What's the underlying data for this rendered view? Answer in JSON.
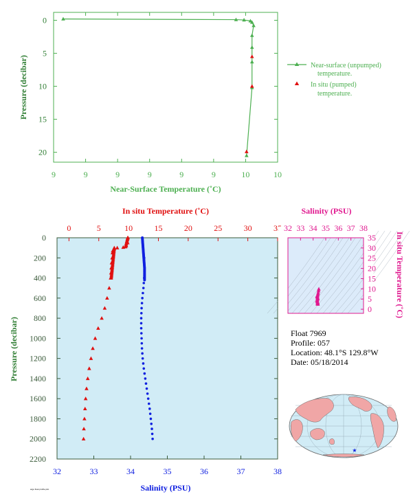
{
  "colors": {
    "green": "#4caf50",
    "axis_green": "#2e7d32",
    "red": "#e01010",
    "blue": "#1020e0",
    "magenta": "#e0188f",
    "panel_fill": "#d1ecf6",
    "ts_fill": "#dcebfa",
    "axis_dark": "#3a5a3a"
  },
  "info": {
    "float": "Float  7969",
    "profile": "Profile:  057",
    "location": "Location:  48.1°S  129.8°W",
    "date": "Date:  05/18/2014"
  },
  "chart_data": [
    {
      "type": "line",
      "xlabel": "Near-Surface Temperature (˚C)",
      "ylabel": "Pressure (decibar)",
      "x_tick_labels": [
        "9",
        "9",
        "9",
        "9",
        "9",
        "9",
        "10",
        "10"
      ],
      "y_ticks": [
        0,
        5,
        10,
        15,
        20
      ],
      "xlim": [
        9.3,
        10.0
      ],
      "ylim": [
        21.5,
        -1.2
      ],
      "series": [
        {
          "name": "Near-surface (unpumped) temperature.",
          "x": [
            9.33,
            9.87,
            9.895,
            9.915,
            9.92,
            9.925,
            9.92,
            9.92,
            9.92,
            9.92,
            9.903
          ],
          "y": [
            -0.2,
            -0.1,
            -0.05,
            0.1,
            0.3,
            0.8,
            2.3,
            4.1,
            6.3,
            10.2,
            20.5
          ]
        },
        {
          "name": "In situ (pumped) temperature.",
          "x": [
            9.903,
            9.92,
            9.92
          ],
          "y": [
            19.9,
            10.0,
            5.5
          ]
        }
      ],
      "legend": "right"
    },
    {
      "type": "scatter",
      "ylabel": "Pressure (decibar)",
      "y_ticks": [
        0,
        200,
        400,
        600,
        800,
        1000,
        1200,
        1400,
        1600,
        1800,
        2000,
        2200
      ],
      "ylim": [
        2200,
        0
      ],
      "top_axis": {
        "label": "In situ Temperature (˚C)",
        "ticks": [
          0,
          5,
          10,
          15,
          20,
          25,
          30,
          35
        ],
        "range": [
          -2,
          35
        ]
      },
      "bottom_axis": {
        "label": "Salinity (PSU)",
        "ticks": [
          32,
          33,
          34,
          35,
          36,
          37,
          38
        ],
        "range": [
          32,
          38
        ]
      },
      "temperature_profile": {
        "pressure": [
          0,
          50,
          80,
          95,
          100,
          110,
          130,
          150,
          200,
          250,
          300,
          350,
          400,
          500,
          600,
          700,
          800,
          900,
          1000,
          1100,
          1200,
          1300,
          1400,
          1500,
          1600,
          1700,
          1800,
          1900,
          2000
        ],
        "temperature": [
          9.9,
          9.85,
          9.6,
          9.1,
          8.1,
          7.6,
          7.35,
          7.3,
          7.25,
          7.15,
          7.1,
          7.05,
          7.0,
          6.75,
          6.4,
          6.0,
          5.5,
          4.9,
          4.4,
          4.0,
          3.7,
          3.4,
          3.15,
          2.95,
          2.8,
          2.7,
          2.6,
          2.5,
          2.45
        ]
      },
      "salinity_profile": {
        "pressure": [
          0,
          50,
          100,
          150,
          200,
          300,
          400,
          500,
          600,
          700,
          800,
          900,
          1000,
          1100,
          1200,
          1300,
          1400,
          1500,
          1600,
          1700,
          1800,
          1900,
          2000
        ],
        "salinity": [
          34.32,
          34.33,
          34.34,
          34.35,
          34.37,
          34.38,
          34.37,
          34.35,
          34.32,
          34.3,
          34.29,
          34.29,
          34.3,
          34.31,
          34.33,
          34.36,
          34.4,
          34.44,
          34.48,
          34.52,
          34.55,
          34.58,
          34.6
        ]
      }
    },
    {
      "type": "scatter",
      "title": "Salinity (PSU)",
      "x_ticks": [
        32,
        33,
        34,
        35,
        36,
        37,
        38
      ],
      "xlim": [
        32,
        38
      ],
      "ylabel": "In situ Temperature (˚C)",
      "y_ticks": [
        0,
        5,
        10,
        15,
        20,
        25,
        30,
        35
      ],
      "ylim": [
        -2,
        35
      ],
      "series": [
        {
          "salinity": [
            34.45,
            34.43,
            34.4,
            34.38,
            34.36,
            34.34,
            34.33,
            34.35,
            34.38
          ],
          "temperature": [
            9.9,
            9.0,
            8.0,
            7.3,
            6.6,
            5.6,
            4.4,
            3.2,
            2.5
          ]
        }
      ]
    }
  ]
}
